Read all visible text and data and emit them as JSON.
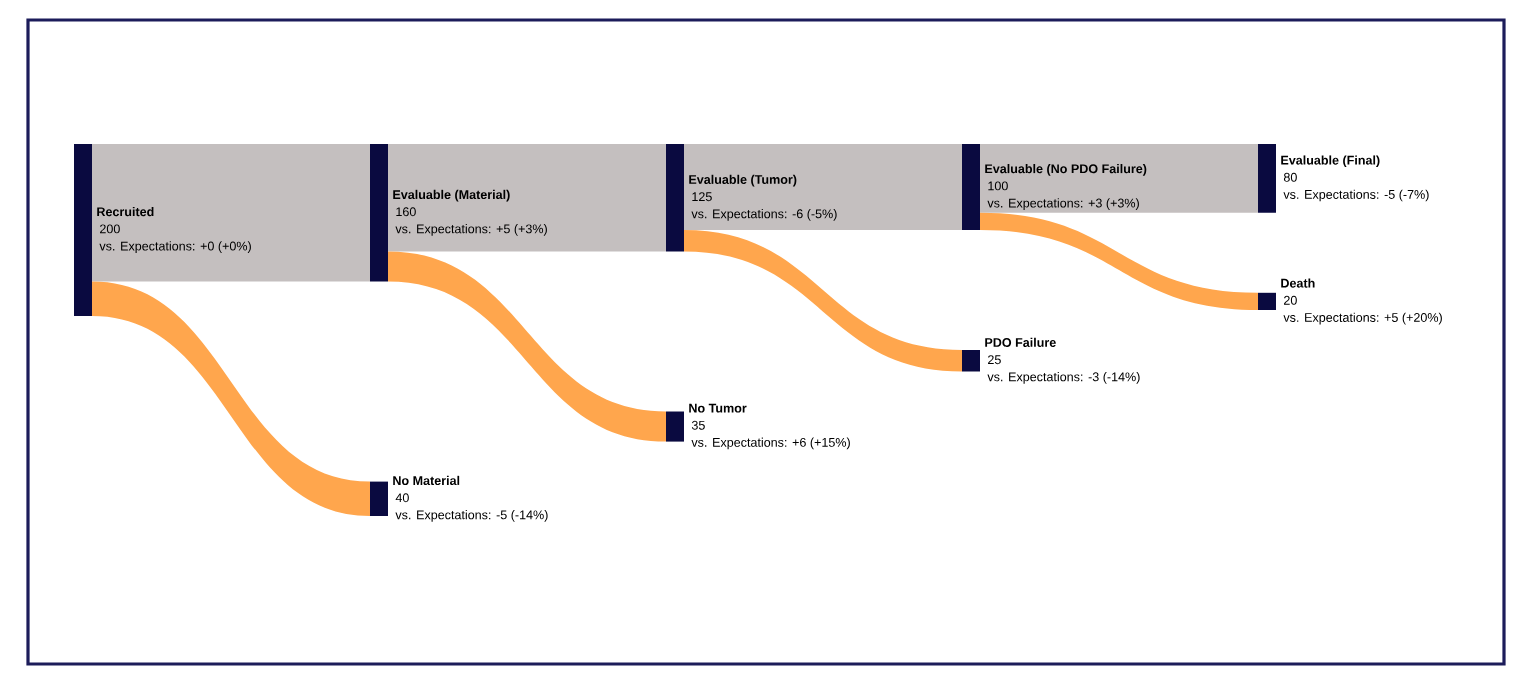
{
  "chart_data": {
    "type": "other",
    "categories": [
      "Recruited",
      "Evaluable (Material)",
      "Evaluable (Tumor)",
      "Evaluable (No PDO Failure)",
      "Evaluable (Final)"
    ],
    "series": [
      {
        "color": "#c4bfbf",
        "values": [
          200,
          160,
          125,
          100,
          80
        ],
        "value_labels": [
          "200",
          "160",
          "125",
          "100",
          "80"
        ]
      },
      {
        "color": "#ffa64d",
        "values": [
          null,
          40,
          35,
          25,
          20
        ],
        "value_labels": [
          null,
          "40",
          "35",
          "25",
          "20"
        ]
      }
    ],
    "color": "#0a0a40",
    "annotations": [
      "vs. Expectations: +0 (+0%)",
      "vs. Expectations: +5 (+3%)",
      "vs. Expectations: -6 (-5%)",
      "vs. Expectations: +3 (+3%)",
      "vs. Expectations: -5 (-7%)",
      "No Material",
      "vs. Expectations: -5 (-14%)",
      "No Tumor",
      "vs. Expectations: +6 (+15%)",
      "PDO Failure",
      "vs. Expectations: -3 (-14%)",
      "Death",
      "vs. Expectations: +5 (+20%)"
    ]
  }
}
